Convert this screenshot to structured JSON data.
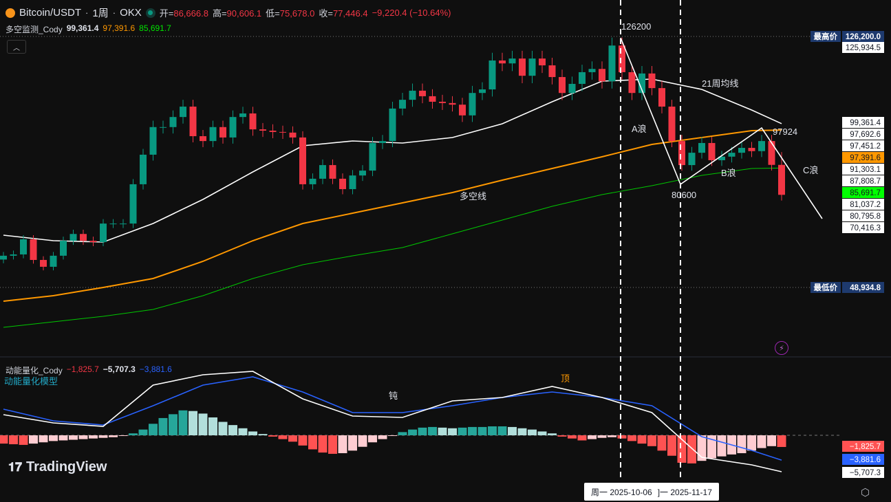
{
  "header": {
    "symbol": "Bitcoin/USDT",
    "sep1": "·",
    "interval": "1周",
    "sep2": "·",
    "exchange": "OKX",
    "open_label": "开=",
    "open": "86,666.8",
    "high_label": "高=",
    "high": "90,606.1",
    "low_label": "低=",
    "low": "75,678.0",
    "close_label": "收=",
    "close": "77,446.4",
    "change": "−9,220.4 (−10.64%)"
  },
  "indicator_main": {
    "name": "多空监测_Cody",
    "v1": "99,361.4",
    "v2": "97,391.6",
    "v3": "85,691.7"
  },
  "indicator_low": {
    "name": "动能量化_Cody",
    "v1": "−1,825.7",
    "v2": "−5,707.3",
    "v3": "−3,881.6",
    "subtitle": "动能量化模型"
  },
  "colors": {
    "up": "#089981",
    "down": "#f23645",
    "ma21": "#ffffff",
    "orange": "#ff9800",
    "green": "#00c800",
    "hist_up_strong": "#26a69a",
    "hist_up_weak": "#b2dfdb",
    "hist_dn_strong": "#ff5252",
    "hist_dn_weak": "#ffcdd2",
    "blue": "#2962ff"
  },
  "annotations": {
    "peak": "126200",
    "a_wave": "A浪",
    "a_low": "80600",
    "b_wave": "B浪",
    "b_high": "97924",
    "c_wave": "C浪",
    "ma21_label": "21周均线",
    "bull_bear_label": "多空线",
    "top_label": "顶",
    "dull_label": "钝"
  },
  "price_axis": {
    "high_label": "最高价",
    "high_value": "126,200.0",
    "low_label": "最低价",
    "low_value": "48,934.8",
    "extra": "125,934.5",
    "stack": [
      {
        "v": "99,361.4",
        "bg": "#ffffff",
        "fg": "#131722"
      },
      {
        "v": "97,692.6",
        "bg": "#ffffff",
        "fg": "#131722"
      },
      {
        "v": "97,451.2",
        "bg": "#ffffff",
        "fg": "#131722"
      },
      {
        "v": "97,391.6",
        "bg": "#ff9800",
        "fg": "#131722"
      },
      {
        "v": "91,303.1",
        "bg": "#ffffff",
        "fg": "#131722"
      },
      {
        "v": "87,808.7",
        "bg": "#ffffff",
        "fg": "#131722"
      },
      {
        "v": "85,691.7",
        "bg": "#00ff00",
        "fg": "#131722"
      },
      {
        "v": "81,037.2",
        "bg": "#ffffff",
        "fg": "#131722"
      },
      {
        "v": "80,795.8",
        "bg": "#ffffff",
        "fg": "#131722"
      },
      {
        "v": "70,416.3",
        "bg": "#ffffff",
        "fg": "#131722"
      }
    ],
    "low_stack": [
      {
        "v": "−1,825.7",
        "bg": "#ff5252",
        "fg": "#ffffff"
      },
      {
        "v": "−3,881.6",
        "bg": "#2962ff",
        "fg": "#ffffff"
      },
      {
        "v": "−5,707.3",
        "bg": "#ffffff",
        "fg": "#131722"
      }
    ]
  },
  "crosshair": {
    "date1": "周一 2025-10-06",
    "date2": "]一 2025-11-17"
  },
  "logo": {
    "text": "TradingView"
  },
  "chart_data": {
    "type": "candlestick",
    "interval": "1W",
    "closes": [
      58700,
      59100,
      63750,
      57400,
      55300,
      58700,
      63300,
      65400,
      63300,
      62900,
      68600,
      68600,
      68600,
      80700,
      89800,
      98300,
      98300,
      101400,
      104600,
      95500,
      94000,
      98300,
      95100,
      101400,
      102500,
      97600,
      97200,
      96800,
      96600,
      95100,
      80700,
      82400,
      86600,
      82400,
      79200,
      83400,
      84900,
      93400,
      94000,
      104000,
      106700,
      109500,
      107800,
      106100,
      105700,
      105200,
      101900,
      108800,
      109900,
      118800,
      117900,
      119400,
      114100,
      119400,
      117300,
      113700,
      108800,
      111600,
      115200,
      116200,
      112400,
      123400,
      115200,
      108800,
      114800,
      110300,
      104600,
      94000,
      86600,
      90400,
      93400,
      88100,
      89200,
      90400,
      91900,
      90900,
      94000,
      86666.8,
      77446.4
    ],
    "last_candle": {
      "open": 86666.8,
      "high": 90606.1,
      "low": 75678.0,
      "close": 77446.4
    },
    "ma_sample_step": 5,
    "ma21": [
      65024,
      63331,
      62907,
      68623,
      76033,
      84500,
      92545,
      94027,
      93392,
      95086,
      99320,
      106094,
      112445,
      113080,
      109905,
      103554,
      99361.4
    ],
    "orange_line": [
      44701,
      46395,
      48935,
      51687,
      56980,
      63331,
      68623,
      71799,
      74974,
      78150,
      81960,
      85559,
      89158,
      92969,
      95086,
      97203,
      97391.6
    ],
    "green_line": [
      36656,
      38350,
      40044,
      42161,
      46395,
      51687,
      55921,
      58673,
      61214,
      65448,
      69682,
      73916,
      77515,
      80267,
      83442,
      85559,
      85691.7
    ],
    "price_range": [
      48934.8,
      126200.0
    ],
    "momentum": {
      "histogram": [
        -1300,
        -1400,
        -1500,
        -1300,
        -1100,
        -900,
        -800,
        -700,
        -600,
        -500,
        -400,
        -300,
        -100,
        300,
        900,
        1800,
        2700,
        3300,
        3900,
        3800,
        3400,
        2800,
        2100,
        1600,
        1100,
        600,
        200,
        -200,
        -600,
        -1000,
        -1600,
        -2200,
        -2700,
        -2900,
        -2800,
        -2400,
        -1800,
        -1100,
        -600,
        -100,
        500,
        900,
        1200,
        1300,
        1200,
        1100,
        1200,
        1300,
        1300,
        1400,
        1400,
        1300,
        1100,
        900,
        600,
        300,
        -200,
        -500,
        -800,
        -600,
        -400,
        -300,
        -500,
        -900,
        -1300,
        -1700,
        -2400,
        -3200,
        -4300,
        -4400,
        -4000,
        -3600,
        -3300,
        -3000,
        -2800,
        -2400,
        -2000,
        -1700,
        -1825.7
      ],
      "white_line": [
        3228,
        1937,
        1399,
        7855,
        9469,
        10007,
        5703,
        3013,
        2798,
        5380,
        5918,
        7640,
        5918,
        3551,
        -3443,
        -4627,
        -5707.3
      ],
      "blue_line": [
        4089,
        2260,
        1614,
        4627,
        7855,
        9146,
        6779,
        3551,
        3551,
        4627,
        5918,
        6779,
        5918,
        4627,
        -215,
        -2367,
        -3881.6
      ]
    },
    "marked_dates": [
      "2025-10-06",
      "2025-11-17"
    ]
  }
}
